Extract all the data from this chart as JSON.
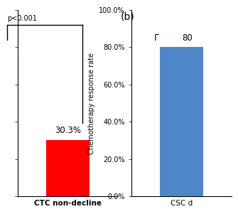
{
  "panel_a": {
    "value": 30.3,
    "bar_color": "#ff0000",
    "annotation": "30.3%",
    "xlabel": "CTC non-decline",
    "bracket_label": "p<0.001",
    "ylim": [
      0,
      100
    ]
  },
  "panel_b": {
    "value": 80.0,
    "bar_color": "#4e86c8",
    "annotation": "80",
    "xlabel": "CSC d",
    "ylabel": "Chemotherapy response rate",
    "yticks": [
      0,
      20,
      40,
      60,
      80,
      100
    ],
    "ytick_labels": [
      "0.0%",
      "20.0%",
      "40.0%",
      "60.0%",
      "80.0%",
      "100.0%"
    ],
    "ylim": [
      0,
      100
    ],
    "label": "(b)"
  },
  "background_color": "#ffffff"
}
